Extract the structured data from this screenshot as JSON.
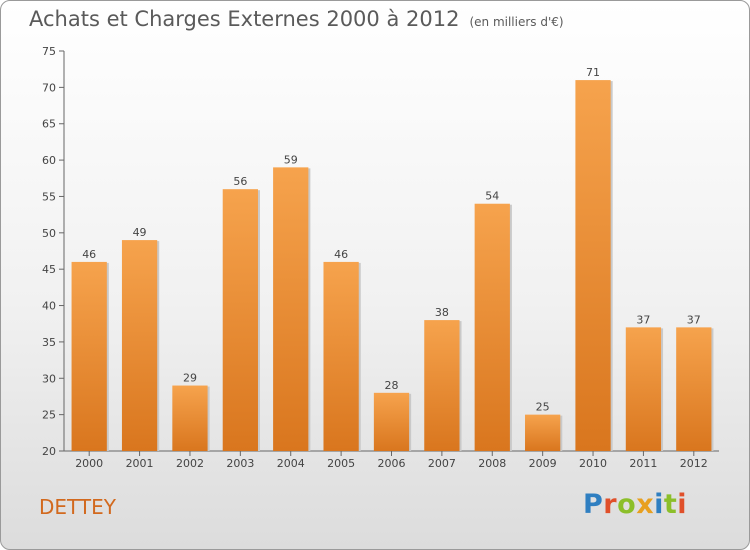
{
  "header": {
    "title": "Achats et Charges Externes 2000 à 2012",
    "subtitle": "(en milliers d'€)"
  },
  "footer": {
    "commune": "DETTEY",
    "logo": "Proxiti"
  },
  "colors": {
    "bar_top": "#f6a34d",
    "bar_bottom": "#d9761e",
    "commune_text": "#d2691e"
  },
  "chart_data": {
    "type": "bar",
    "title": "Achats et Charges Externes 2000 à 2012",
    "subtitle": "(en milliers d'€)",
    "categories": [
      "2000",
      "2001",
      "2002",
      "2003",
      "2004",
      "2005",
      "2006",
      "2007",
      "2008",
      "2009",
      "2010",
      "2011",
      "2012"
    ],
    "values": [
      46,
      49,
      29,
      56,
      59,
      46,
      28,
      38,
      54,
      25,
      71,
      37,
      37
    ],
    "ylim": [
      20,
      75
    ],
    "yticks": [
      20,
      25,
      30,
      35,
      40,
      45,
      50,
      55,
      60,
      65,
      70,
      75
    ],
    "grid": false,
    "legend": "none"
  }
}
